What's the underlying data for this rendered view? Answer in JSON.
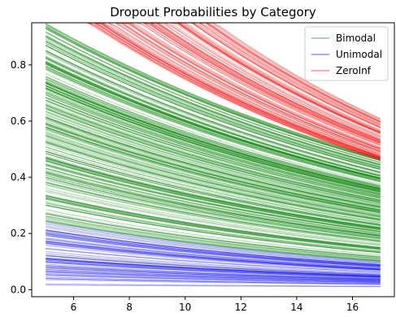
{
  "chart_data": {
    "type": "line",
    "title": "Dropout Probabilities by Category",
    "xlabel": "",
    "ylabel": "",
    "xlim": [
      4.5,
      17.5
    ],
    "ylim": [
      -0.025,
      0.95
    ],
    "xticks": [
      6,
      8,
      10,
      12,
      14,
      16
    ],
    "yticks": [
      0.0,
      0.2,
      0.4,
      0.6,
      0.8
    ],
    "legend": {
      "placement": "upper right"
    },
    "cap_value": 0.95,
    "x_range": [
      5,
      17
    ],
    "series": [
      {
        "name": "Bimodal",
        "color": "#008000",
        "values_at_x5_min": 0.24,
        "values_at_x5_max": 0.95,
        "values_at_x17_min": 0.1,
        "values_at_x17_max": 0.47
      },
      {
        "name": "Unimodal",
        "color": "#0000ff",
        "values_at_x5_min": 0.015,
        "values_at_x5_max": 0.24,
        "values_at_x17_min": 0.01,
        "values_at_x17_max": 0.1
      },
      {
        "name": "ZeroInf",
        "color": "#ff0000",
        "values_at_x5_min": 0.95,
        "values_at_x5_max": 0.95,
        "values_at_x17_min": 0.46,
        "values_at_x17_max": 0.61
      }
    ]
  }
}
